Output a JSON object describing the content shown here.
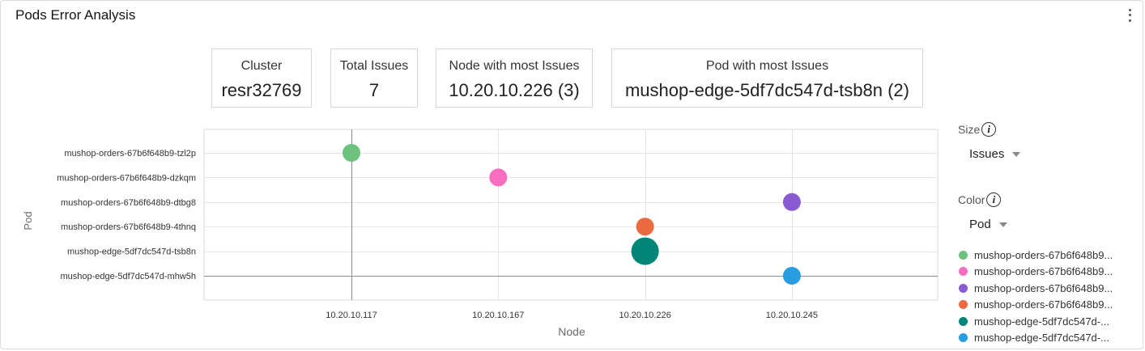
{
  "panel": {
    "title": "Pods Error Analysis",
    "menu_icon": "kebab-menu-icon"
  },
  "summary": [
    {
      "label": "Cluster",
      "value": "resr32769"
    },
    {
      "label": "Total Issues",
      "value": "7"
    },
    {
      "label": "Node with most Issues",
      "value": "10.20.10.226 (3)"
    },
    {
      "label": "Pod with most Issues",
      "value": "mushop-edge-5df7dc547d-tsb8n (2)"
    }
  ],
  "controls": {
    "size_label": "Size",
    "size_value": "Issues",
    "color_label": "Color",
    "color_value": "Pod",
    "info_icon": "info-icon"
  },
  "legend": [
    {
      "label": "mushop-orders-67b6f648b9...",
      "color": "#6dc27d"
    },
    {
      "label": "mushop-orders-67b6f648b9...",
      "color": "#f96dc0"
    },
    {
      "label": "mushop-orders-67b6f648b9...",
      "color": "#8a5ad0"
    },
    {
      "label": "mushop-orders-67b6f648b9...",
      "color": "#ec6a41"
    },
    {
      "label": "mushop-edge-5df7dc547d-...",
      "color": "#008577"
    },
    {
      "label": "mushop-edge-5df7dc547d-...",
      "color": "#2a9de0"
    }
  ],
  "chart_data": {
    "type": "scatter",
    "xlabel": "Node",
    "ylabel": "Pod",
    "x_categories": [
      "10.20.10.117",
      "10.20.10.167",
      "10.20.10.226",
      "10.20.10.245"
    ],
    "y_categories": [
      "mushop-orders-67b6f648b9-tzl2p",
      "mushop-orders-67b6f648b9-dzkqm",
      "mushop-orders-67b6f648b9-dtbg8",
      "mushop-orders-67b6f648b9-4thnq",
      "mushop-edge-5df7dc547d-tsb8n",
      "mushop-edge-5df7dc547d-mhw5h"
    ],
    "size_by": "Issues",
    "color_by": "Pod",
    "points": [
      {
        "x": "10.20.10.117",
        "y": "mushop-orders-67b6f648b9-tzl2p",
        "issues": 1,
        "color": "#6dc27d"
      },
      {
        "x": "10.20.10.167",
        "y": "mushop-orders-67b6f648b9-dzkqm",
        "issues": 1,
        "color": "#f96dc0"
      },
      {
        "x": "10.20.10.245",
        "y": "mushop-orders-67b6f648b9-dtbg8",
        "issues": 1,
        "color": "#8a5ad0"
      },
      {
        "x": "10.20.10.226",
        "y": "mushop-orders-67b6f648b9-4thnq",
        "issues": 1,
        "color": "#ec6a41"
      },
      {
        "x": "10.20.10.226",
        "y": "mushop-edge-5df7dc547d-tsb8n",
        "issues": 2,
        "color": "#008577"
      },
      {
        "x": "10.20.10.245",
        "y": "mushop-edge-5df7dc547d-mhw5h",
        "issues": 1,
        "color": "#2a9de0"
      }
    ],
    "grid": true,
    "crosshair": {
      "x": "10.20.10.117",
      "y": "mushop-edge-5df7dc547d-mhw5h"
    },
    "legend_position": "right"
  }
}
